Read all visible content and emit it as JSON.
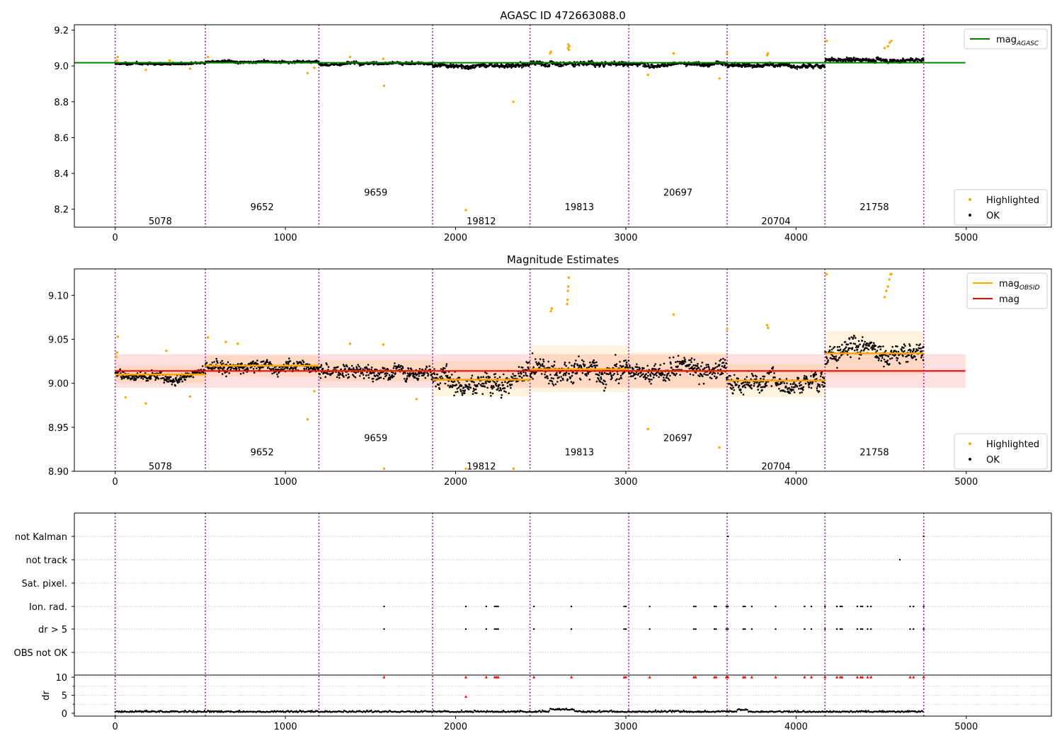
{
  "figure": {
    "panel1_title": "AGASC ID 472663088.0",
    "panel2_title": "Magnitude Estimates",
    "panel3_ylabel": "dr"
  },
  "chart_data": [
    {
      "type": "scatter",
      "title": "AGASC ID 472663088.0",
      "xlabel": "",
      "ylabel": "",
      "xlim": [
        -240,
        5500
      ],
      "ylim": [
        8.1,
        9.23
      ],
      "xticks": [
        0,
        1000,
        2000,
        3000,
        4000,
        5000
      ],
      "yticks": [
        8.2,
        8.4,
        8.6,
        8.8,
        9.0,
        9.2
      ],
      "ytick_labels": [
        "8.2",
        "8.4",
        "8.6",
        "8.8",
        "9.0",
        "9.2"
      ],
      "grid": false,
      "legend": {
        "upper": [
          {
            "label": "mag",
            "subscript": "AGASC",
            "marker": "line",
            "color": "#008000"
          }
        ],
        "lower": [
          {
            "label": "Highlighted",
            "marker": "dot",
            "color": "#FFA500"
          },
          {
            "label": "OK",
            "marker": "dot",
            "color": "#000000"
          }
        ],
        "placement": [
          "top-right",
          "bottom-right"
        ]
      },
      "obs_boundaries": [
        0,
        530,
        1197,
        1865,
        2437,
        3017,
        3595,
        4170,
        4750
      ],
      "obsid_labels": [
        {
          "text": "5078",
          "x": 265,
          "y": 8.135
        },
        {
          "text": "9652",
          "x": 863,
          "y": 8.215
        },
        {
          "text": "9659",
          "x": 1531,
          "y": 8.295
        },
        {
          "text": "19812",
          "x": 2151,
          "y": 8.135
        },
        {
          "text": "19813",
          "x": 2727,
          "y": 8.215
        },
        {
          "text": "20697",
          "x": 3306,
          "y": 8.295
        },
        {
          "text": "20704",
          "x": 3882,
          "y": 8.135
        },
        {
          "text": "21758",
          "x": 4460,
          "y": 8.215
        }
      ],
      "series": [
        {
          "name": "mag_AGASC",
          "kind": "hline",
          "y": 9.018,
          "x_range": [
            -240,
            4995
          ],
          "color": "#008000"
        },
        {
          "name": "OK",
          "kind": "scatter",
          "color": "#000000",
          "segments": [
            {
              "x": [
                0,
                530
              ],
              "mean": 9.012,
              "spread": 0.009
            },
            {
              "x": [
                530,
                1197
              ],
              "mean": 9.022,
              "spread": 0.009
            },
            {
              "x": [
                1197,
                1865
              ],
              "mean": 9.015,
              "spread": 0.012
            },
            {
              "x": [
                1865,
                2437
              ],
              "mean": 9.004,
              "spread": 0.018
            },
            {
              "x": [
                2437,
                3017
              ],
              "mean": 9.016,
              "spread": 0.02
            },
            {
              "x": [
                3017,
                3595
              ],
              "mean": 9.013,
              "spread": 0.016
            },
            {
              "x": [
                3595,
                4170
              ],
              "mean": 9.004,
              "spread": 0.016
            },
            {
              "x": [
                4170,
                4750
              ],
              "mean": 9.034,
              "spread": 0.016
            }
          ]
        },
        {
          "name": "Highlighted",
          "kind": "scatter",
          "color": "#FFA500",
          "points": [
            [
              10,
              9.03
            ],
            [
              15,
              9.05
            ],
            [
              180,
              8.978
            ],
            [
              320,
              9.03
            ],
            [
              440,
              8.985
            ],
            [
              545,
              9.05
            ],
            [
              1130,
              8.96
            ],
            [
              1170,
              8.99
            ],
            [
              1380,
              9.05
            ],
            [
              1575,
              9.04
            ],
            [
              1580,
              8.89
            ],
            [
              2060,
              8.195
            ],
            [
              2340,
              8.8
            ],
            [
              2555,
              9.07
            ],
            [
              2560,
              9.08
            ],
            [
              2660,
              9.1
            ],
            [
              2662,
              9.12
            ],
            [
              2665,
              9.09
            ],
            [
              2668,
              9.11
            ],
            [
              3130,
              8.95
            ],
            [
              3280,
              9.07
            ],
            [
              3550,
              8.93
            ],
            [
              3595,
              9.07
            ],
            [
              3830,
              9.06
            ],
            [
              3835,
              9.07
            ],
            [
              4180,
              9.14
            ],
            [
              4520,
              9.1
            ],
            [
              4540,
              9.11
            ],
            [
              4550,
              9.13
            ],
            [
              4560,
              9.14
            ]
          ]
        }
      ]
    },
    {
      "type": "scatter",
      "title": "Magnitude Estimates",
      "xlabel": "",
      "ylabel": "",
      "xlim": [
        -240,
        5500
      ],
      "ylim": [
        8.9,
        9.13
      ],
      "xticks": [
        0,
        1000,
        2000,
        3000,
        4000,
        5000
      ],
      "yticks": [
        8.9,
        8.95,
        9.0,
        9.05,
        9.1
      ],
      "ytick_labels": [
        "8.90",
        "8.95",
        "9.00",
        "9.05",
        "9.10"
      ],
      "grid": false,
      "legend": {
        "upper": [
          {
            "label": "mag",
            "subscript": "OBSID",
            "marker": "line",
            "color": "#FFA500"
          },
          {
            "label": "mag",
            "subscript": "",
            "marker": "line",
            "color": "#FF0000"
          }
        ],
        "lower": [
          {
            "label": "Highlighted",
            "marker": "dot",
            "color": "#FFA500"
          },
          {
            "label": "OK",
            "marker": "dot",
            "color": "#000000"
          }
        ],
        "placement": [
          "top-right",
          "bottom-right"
        ]
      },
      "obs_boundaries": [
        0,
        530,
        1197,
        1865,
        2437,
        3017,
        3595,
        4170,
        4750
      ],
      "obsid_labels": [
        {
          "text": "5078",
          "x": 265,
          "y": 8.906
        },
        {
          "text": "9652",
          "x": 863,
          "y": 8.922
        },
        {
          "text": "9659",
          "x": 1531,
          "y": 8.938
        },
        {
          "text": "19812",
          "x": 2151,
          "y": 8.906
        },
        {
          "text": "19813",
          "x": 2727,
          "y": 8.922
        },
        {
          "text": "20697",
          "x": 3306,
          "y": 8.938
        },
        {
          "text": "20704",
          "x": 3882,
          "y": 8.906
        },
        {
          "text": "21758",
          "x": 4460,
          "y": 8.922
        }
      ],
      "series": [
        {
          "name": "mag",
          "kind": "hline",
          "y": 9.014,
          "band": [
            8.995,
            9.033
          ],
          "x_range": [
            0,
            4995
          ],
          "color": "#FF0000"
        },
        {
          "name": "mag_OBSID",
          "kind": "steps",
          "color": "#FFA500",
          "segments": [
            {
              "x": [
                0,
                530
              ],
              "y": 9.01,
              "band": [
                9.0,
                9.02
              ]
            },
            {
              "x": [
                530,
                1197
              ],
              "y": 9.02,
              "band": [
                9.008,
                9.031
              ]
            },
            {
              "x": [
                1197,
                1865
              ],
              "y": 9.014,
              "band": [
                9.002,
                9.026
              ]
            },
            {
              "x": [
                1865,
                2437
              ],
              "y": 9.004,
              "band": [
                8.985,
                9.025
              ]
            },
            {
              "x": [
                2437,
                3017
              ],
              "y": 9.016,
              "band": [
                8.99,
                9.043
              ]
            },
            {
              "x": [
                3017,
                3595
              ],
              "y": 9.014,
              "band": [
                8.993,
                9.035
              ]
            },
            {
              "x": [
                3595,
                4170
              ],
              "y": 9.003,
              "band": [
                8.984,
                9.022
              ]
            },
            {
              "x": [
                4170,
                4750
              ],
              "y": 9.034,
              "band": [
                9.01,
                9.059
              ]
            }
          ]
        },
        {
          "name": "OK",
          "kind": "scatter",
          "color": "#000000",
          "segments": [
            {
              "x": [
                0,
                530
              ],
              "mean": 9.01,
              "spread": 0.008
            },
            {
              "x": [
                530,
                1197
              ],
              "mean": 9.02,
              "spread": 0.01
            },
            {
              "x": [
                1197,
                1865
              ],
              "mean": 9.014,
              "spread": 0.011
            },
            {
              "x": [
                1865,
                2437
              ],
              "mean": 9.004,
              "spread": 0.017
            },
            {
              "x": [
                2437,
                3017
              ],
              "mean": 9.016,
              "spread": 0.019
            },
            {
              "x": [
                3017,
                3595
              ],
              "mean": 9.014,
              "spread": 0.016
            },
            {
              "x": [
                3595,
                4170
              ],
              "mean": 9.003,
              "spread": 0.016
            },
            {
              "x": [
                4170,
                4750
              ],
              "mean": 9.034,
              "spread": 0.016
            }
          ]
        },
        {
          "name": "Highlighted",
          "kind": "scatter",
          "color": "#FFA500",
          "points": [
            [
              5,
              9.03
            ],
            [
              10,
              9.035
            ],
            [
              15,
              9.053
            ],
            [
              60,
              8.984
            ],
            [
              180,
              8.977
            ],
            [
              300,
              9.037
            ],
            [
              440,
              8.985
            ],
            [
              545,
              9.052
            ],
            [
              650,
              9.047
            ],
            [
              720,
              9.045
            ],
            [
              1130,
              8.959
            ],
            [
              1170,
              8.991
            ],
            [
              1380,
              9.045
            ],
            [
              1575,
              9.044
            ],
            [
              1580,
              8.903
            ],
            [
              1770,
              8.982
            ],
            [
              2060,
              8.903
            ],
            [
              2340,
              8.903
            ],
            [
              2560,
              9.082
            ],
            [
              2565,
              9.085
            ],
            [
              2655,
              9.09
            ],
            [
              2658,
              9.095
            ],
            [
              2660,
              9.105
            ],
            [
              2662,
              9.11
            ],
            [
              2665,
              9.12
            ],
            [
              3130,
              8.948
            ],
            [
              3280,
              9.078
            ],
            [
              3550,
              8.927
            ],
            [
              3595,
              9.062
            ],
            [
              3830,
              9.066
            ],
            [
              3835,
              9.063
            ],
            [
              4180,
              9.124
            ],
            [
              4520,
              9.098
            ],
            [
              4530,
              9.105
            ],
            [
              4540,
              9.11
            ],
            [
              4548,
              9.118
            ],
            [
              4555,
              9.124
            ],
            [
              4560,
              9.124
            ]
          ]
        }
      ]
    },
    {
      "type": "scatter",
      "title": "",
      "xlabel": "",
      "ylabel": "dr",
      "xlim": [
        -240,
        5500
      ],
      "xticks": [
        0,
        1000,
        2000,
        3000,
        4000,
        5000
      ],
      "grid": true,
      "obs_boundaries": [
        0,
        530,
        1197,
        1865,
        2437,
        3017,
        3595,
        4170,
        4750
      ],
      "flag_rows": [
        "not Kalman",
        "not track",
        "Sat. pixel.",
        "Ion. rad.",
        "dr > 5",
        "OBS not OK"
      ],
      "dr_ylim": [
        0,
        10
      ],
      "dr_yticks": [
        0,
        5,
        10
      ],
      "dr_ytick_labels": [
        "0",
        "5",
        "10"
      ],
      "flag_points": {
        "Ion. rad.": [
          1580,
          2060,
          2180,
          2230,
          2240,
          2250,
          2460,
          2680,
          2990,
          3000,
          3140,
          3400,
          3410,
          3520,
          3530,
          3590,
          3600,
          3690,
          3700,
          3740,
          3880,
          4050,
          4090,
          4170,
          4240,
          4260,
          4270,
          4360,
          4380,
          4390,
          4420,
          4440,
          4670,
          4690,
          4750
        ],
        "dr > 5": [
          1580,
          2060,
          2180,
          2230,
          2240,
          2250,
          2460,
          2680,
          2990,
          3000,
          3140,
          3400,
          3410,
          3520,
          3530,
          3590,
          3600,
          3690,
          3700,
          3740,
          3880,
          4050,
          4090,
          4170,
          4240,
          4260,
          4270,
          4360,
          4380,
          4390,
          4420,
          4440,
          4670,
          4690,
          4750
        ],
        "not track": [
          4610
        ],
        "not Kalman": [
          3600,
          4750
        ]
      },
      "dr_series": {
        "name": "dr",
        "color": "#000000",
        "baseline": 0.3,
        "spread": 0.35
      },
      "dr_outliers": {
        "color": "#FF0000",
        "points": [
          [
            1580,
            10
          ],
          [
            2060,
            10
          ],
          [
            2060,
            4.6
          ],
          [
            2180,
            10
          ],
          [
            2230,
            10
          ],
          [
            2240,
            10
          ],
          [
            2250,
            10
          ],
          [
            2460,
            10
          ],
          [
            2680,
            10
          ],
          [
            2990,
            10
          ],
          [
            3000,
            10
          ],
          [
            3140,
            10
          ],
          [
            3400,
            10
          ],
          [
            3410,
            10
          ],
          [
            3520,
            10
          ],
          [
            3530,
            10
          ],
          [
            3590,
            10
          ],
          [
            3600,
            10
          ],
          [
            3690,
            10
          ],
          [
            3700,
            10
          ],
          [
            3740,
            10
          ],
          [
            3880,
            10
          ],
          [
            4050,
            10
          ],
          [
            4090,
            10
          ],
          [
            4170,
            10
          ],
          [
            4240,
            10
          ],
          [
            4260,
            10
          ],
          [
            4270,
            10
          ],
          [
            4360,
            10
          ],
          [
            4380,
            10
          ],
          [
            4390,
            10
          ],
          [
            4420,
            10
          ],
          [
            4440,
            10
          ],
          [
            4670,
            10
          ],
          [
            4690,
            10
          ],
          [
            4750,
            10
          ]
        ]
      }
    }
  ]
}
